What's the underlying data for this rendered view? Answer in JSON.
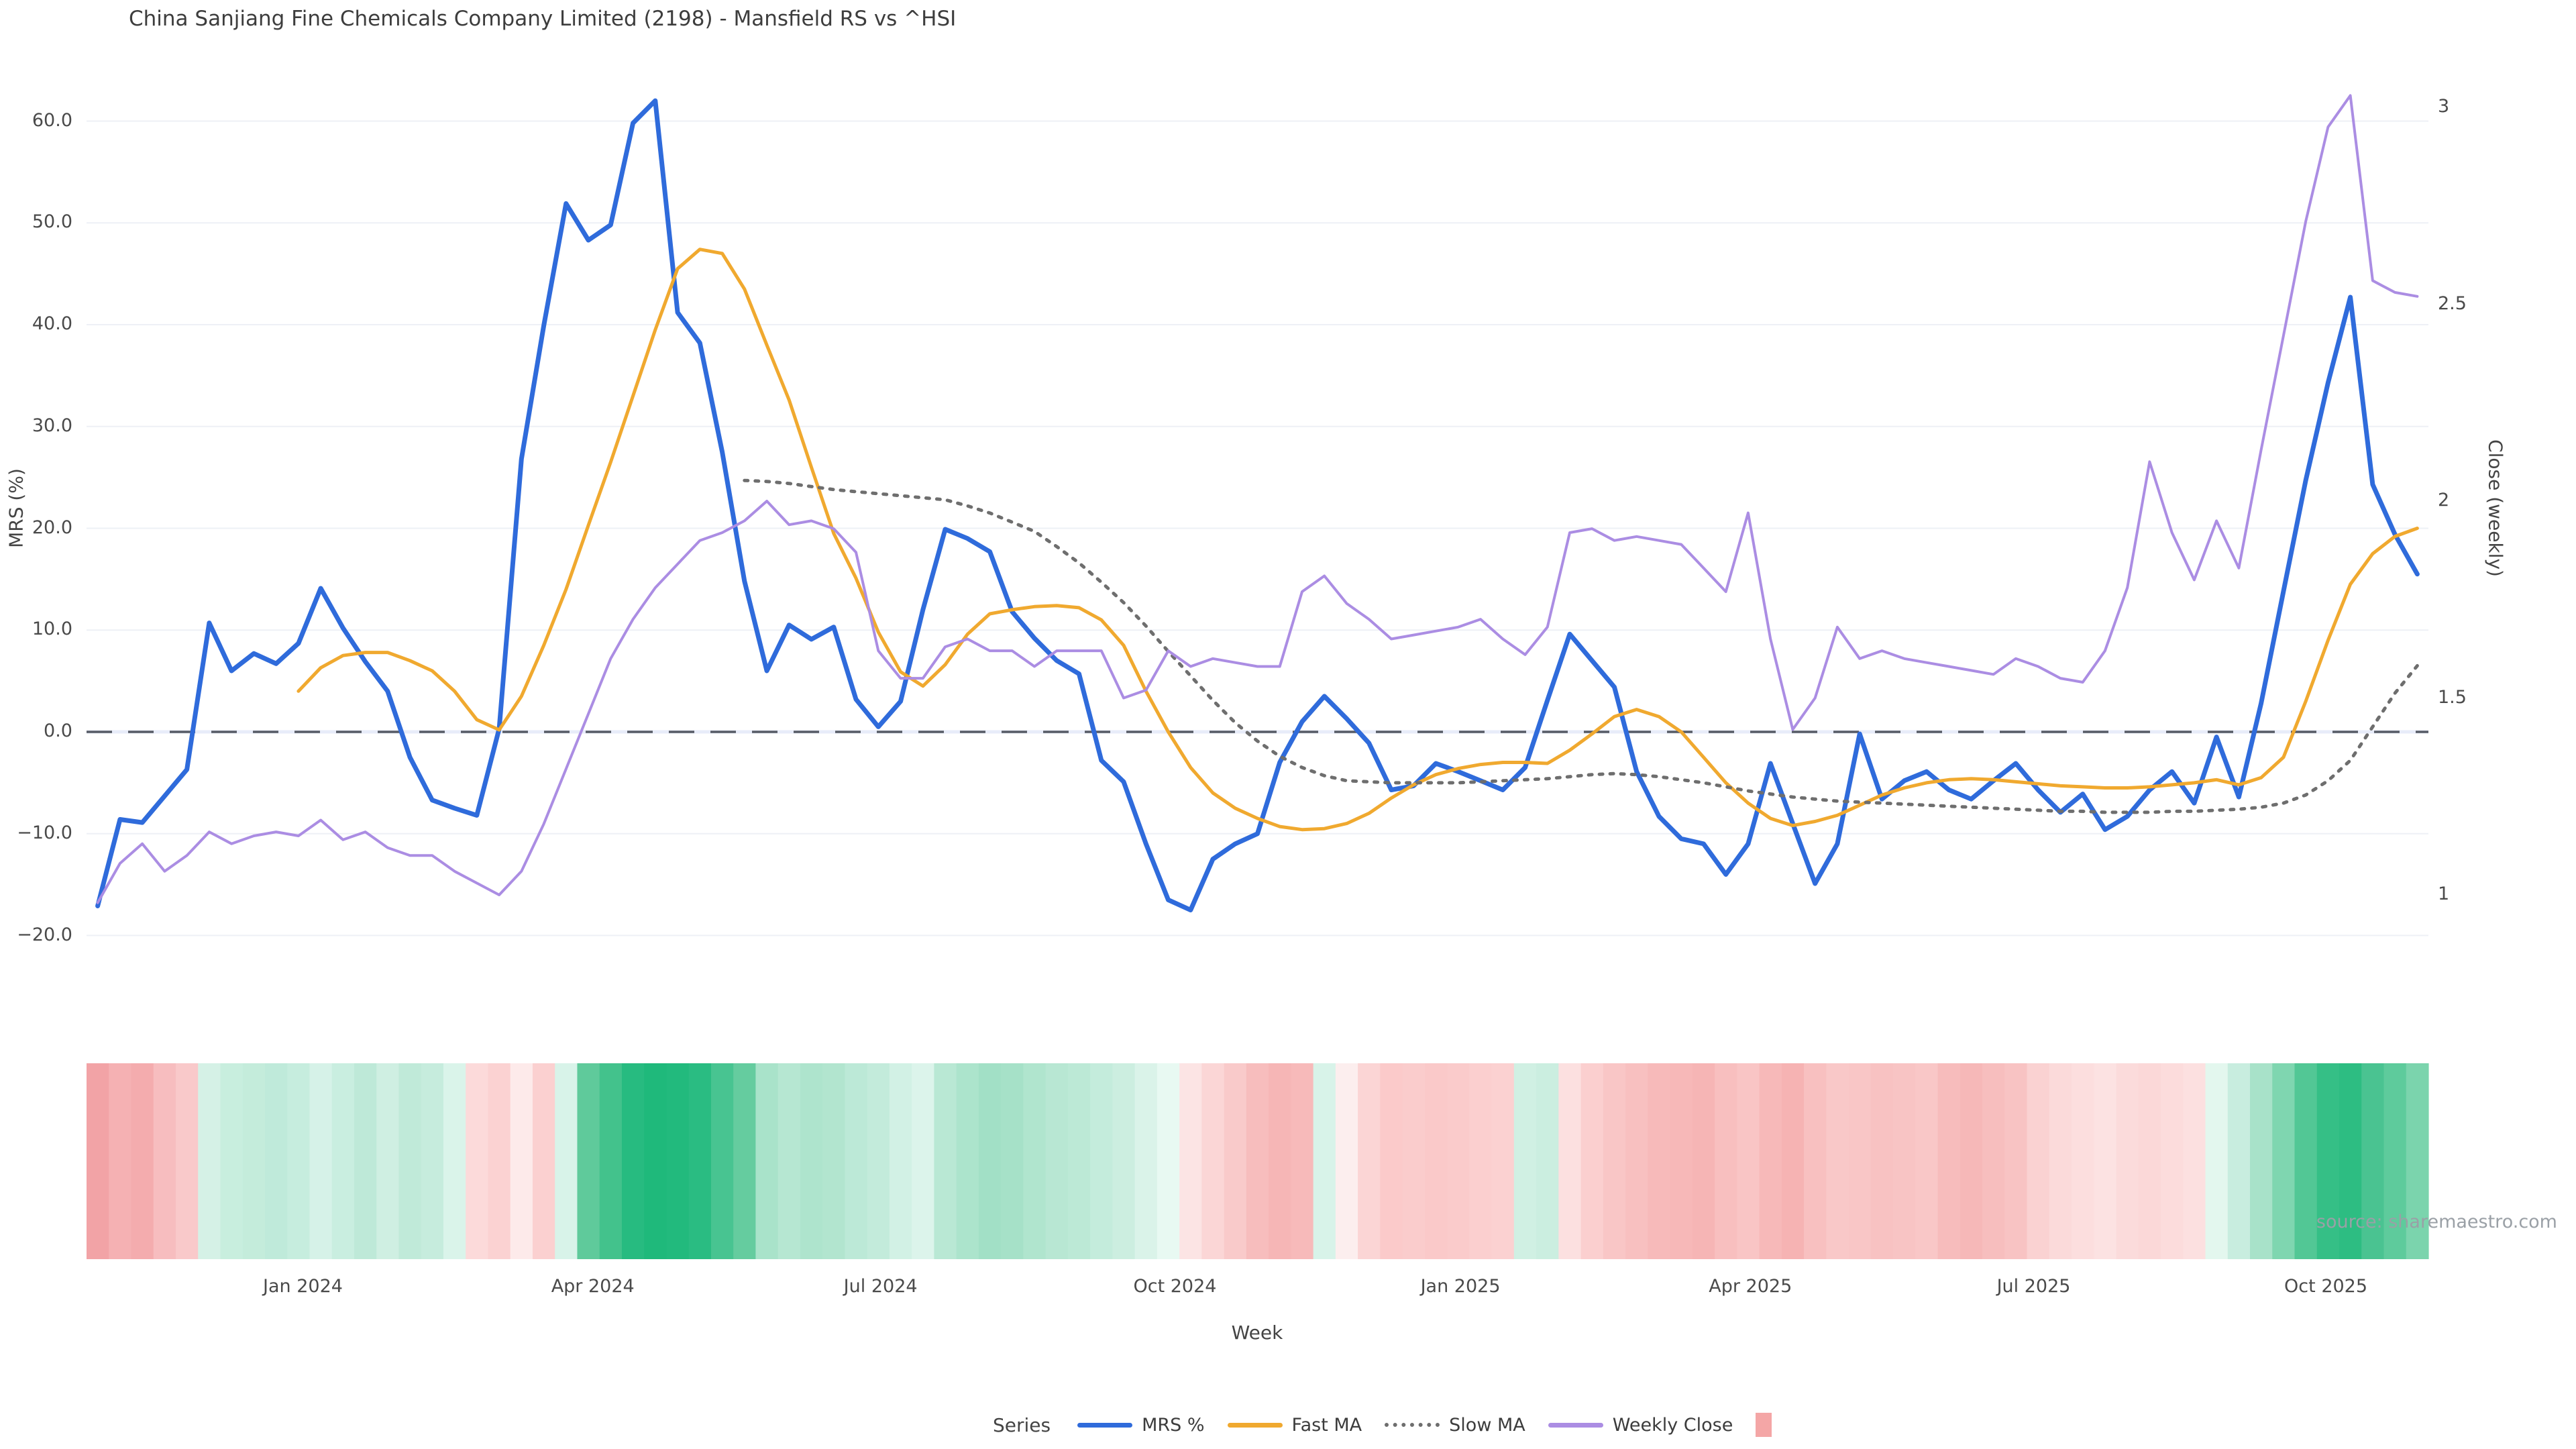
{
  "title": "China Sanjiang Fine Chemicals Company Limited (2198) - Mansfield RS vs ^HSI",
  "source": "source: sharemaestro.com",
  "axes": {
    "left": {
      "label": "MRS (%)",
      "ticks": [
        [
          "60.0",
          60
        ],
        [
          "50.0",
          50
        ],
        [
          "40.0",
          40
        ],
        [
          "30.0",
          30
        ],
        [
          "20.0",
          20
        ],
        [
          "10.0",
          10
        ],
        [
          "0.0",
          0
        ],
        [
          "−10.0",
          -10
        ],
        [
          "−20.0",
          -20
        ]
      ]
    },
    "right": {
      "label": "Close (weekly)",
      "ticks": [
        [
          "3",
          3
        ],
        [
          "2.5",
          2.5
        ],
        [
          "2",
          2
        ],
        [
          "1.5",
          1.5
        ],
        [
          "1",
          1
        ]
      ]
    },
    "x": {
      "label": "Week",
      "ticks": [
        [
          "Jan 2024",
          9.2
        ],
        [
          "Apr 2024",
          22.2
        ],
        [
          "Jul 2024",
          35.1
        ],
        [
          "Oct 2024",
          48.3
        ],
        [
          "Jan 2025",
          61.1
        ],
        [
          "Apr 2025",
          74.1
        ],
        [
          "Jul 2025",
          86.8
        ],
        [
          "Oct 2025",
          99.9
        ]
      ]
    }
  },
  "legend": {
    "series_title": "Series",
    "items": [
      {
        "label": "MRS %",
        "swatch": "line",
        "color": "#2f6bdb"
      },
      {
        "label": "Fast MA",
        "swatch": "line",
        "color": "#f0a92f"
      },
      {
        "label": "Slow MA",
        "swatch": "dotted",
        "color": "#6e6e6e"
      },
      {
        "label": "Weekly Close",
        "swatch": "line",
        "color": "#ab8de3"
      },
      {
        "label": "",
        "swatch": "square",
        "color": "#f4a6a6"
      }
    ]
  },
  "colors": {
    "mrs": "#2f6bdb",
    "fast_ma": "#f0a92f",
    "slow_ma": "#6e6e6e",
    "close": "#ab8de3",
    "zero_dash": "#565b66",
    "zero_band": "#e8ecf9",
    "grid": "#eef0f6",
    "title_text": "#3d3d3d",
    "tick_text": "#4a4a4a",
    "source_text": "#9aa0a6"
  },
  "chart_data": {
    "type": "line",
    "x_unit": "weekly index (late Oct 2023 – Nov 2025)",
    "n_points": 105,
    "left_axis": {
      "label": "MRS (%)",
      "range": [
        -24,
        65
      ],
      "zeroline": true
    },
    "right_axis": {
      "label": "Close (weekly)",
      "range": [
        0.85,
        3.05
      ]
    },
    "grid": "horizontal only",
    "legend_position": "bottom center",
    "series": [
      {
        "name": "MRS %",
        "axis": "left",
        "style": "solid",
        "color": "#2f6bdb",
        "values": [
          -17.1,
          -8.6,
          -8.9,
          -6.3,
          -3.7,
          10.7,
          6.0,
          7.7,
          6.7,
          8.7,
          14.1,
          10.2,
          6.9,
          4.0,
          -2.5,
          -6.7,
          -7.5,
          -8.2,
          0.3,
          26.8,
          39.9,
          51.9,
          48.3,
          49.8,
          59.8,
          62.0,
          41.2,
          38.2,
          27.5,
          14.8,
          6.0,
          10.5,
          9.1,
          10.3,
          3.2,
          0.5,
          3.0,
          12.0,
          19.9,
          19.0,
          17.7,
          11.8,
          9.2,
          7.0,
          5.7,
          -2.8,
          -4.9,
          -11.0,
          -16.5,
          -17.5,
          -12.5,
          -11.0,
          -10.0,
          -3.0,
          1.0,
          3.5,
          1.3,
          -1.1,
          -5.7,
          -5.3,
          -3.1,
          -3.9,
          -4.8,
          -5.7,
          -3.5,
          3.1,
          9.6,
          7.0,
          4.4,
          -3.9,
          -8.3,
          -10.5,
          -11.0,
          -14.0,
          -11.0,
          -3.1,
          -9.0,
          -14.9,
          -11.0,
          -0.2,
          -6.6,
          -4.8,
          -3.9,
          -5.7,
          -6.6,
          -4.8,
          -3.1,
          -5.7,
          -7.9,
          -6.1,
          -9.6,
          -8.3,
          -5.7,
          -3.9,
          -7.0,
          -0.5,
          -6.4,
          2.8,
          13.8,
          24.7,
          34.3,
          42.7,
          24.3,
          19.4,
          15.5
        ]
      },
      {
        "name": "Fast MA",
        "axis": "left",
        "style": "solid",
        "color": "#f0a92f",
        "values": [
          null,
          null,
          null,
          null,
          null,
          null,
          null,
          null,
          null,
          4.0,
          6.3,
          7.5,
          7.8,
          7.8,
          7.0,
          6.0,
          4.0,
          1.2,
          0.2,
          3.5,
          8.5,
          14.0,
          20.3,
          26.5,
          33.0,
          39.5,
          45.5,
          47.4,
          47.0,
          43.5,
          38.0,
          32.6,
          26.0,
          19.5,
          15.1,
          9.8,
          5.9,
          4.5,
          6.6,
          9.6,
          11.6,
          12.0,
          12.3,
          12.4,
          12.2,
          11.0,
          8.5,
          4.0,
          0.0,
          -3.5,
          -6.0,
          -7.5,
          -8.5,
          -9.3,
          -9.6,
          -9.5,
          -9.0,
          -8.0,
          -6.5,
          -5.2,
          -4.2,
          -3.6,
          -3.2,
          -3.0,
          -3.0,
          -3.1,
          -1.8,
          -0.2,
          1.5,
          2.2,
          1.5,
          0.0,
          -2.5,
          -5.0,
          -7.0,
          -8.5,
          -9.2,
          -8.8,
          -8.2,
          -7.2,
          -6.2,
          -5.5,
          -5.0,
          -4.7,
          -4.6,
          -4.7,
          -4.9,
          -5.1,
          -5.3,
          -5.4,
          -5.5,
          -5.5,
          -5.4,
          -5.2,
          -5.0,
          -4.7,
          -5.2,
          -4.5,
          -2.5,
          3.0,
          9.0,
          14.5,
          17.5,
          19.2,
          20.0
        ]
      },
      {
        "name": "Slow MA",
        "axis": "left",
        "style": "dotted",
        "color": "#6e6e6e",
        "values": [
          null,
          null,
          null,
          null,
          null,
          null,
          null,
          null,
          null,
          null,
          null,
          null,
          null,
          null,
          null,
          null,
          null,
          null,
          null,
          null,
          null,
          null,
          null,
          null,
          null,
          null,
          null,
          null,
          null,
          24.7,
          24.6,
          24.4,
          24.1,
          23.8,
          23.6,
          23.4,
          23.2,
          23.0,
          22.8,
          22.2,
          21.5,
          20.6,
          19.7,
          18.2,
          16.6,
          14.7,
          12.7,
          10.4,
          7.9,
          5.5,
          3.1,
          0.9,
          -0.9,
          -2.4,
          -3.5,
          -4.3,
          -4.8,
          -4.9,
          -5.0,
          -5.0,
          -5.0,
          -5.0,
          -4.9,
          -4.8,
          -4.7,
          -4.6,
          -4.4,
          -4.2,
          -4.1,
          -4.2,
          -4.4,
          -4.7,
          -5.0,
          -5.4,
          -5.8,
          -6.1,
          -6.4,
          -6.6,
          -6.8,
          -6.9,
          -7.0,
          -7.1,
          -7.2,
          -7.3,
          -7.4,
          -7.5,
          -7.6,
          -7.7,
          -7.8,
          -7.8,
          -7.9,
          -7.9,
          -7.9,
          -7.8,
          -7.8,
          -7.7,
          -7.6,
          -7.4,
          -7.0,
          -6.2,
          -4.8,
          -2.8,
          0.5,
          3.8,
          6.5
        ]
      },
      {
        "name": "Weekly Close",
        "axis": "right",
        "style": "solid",
        "color": "#ab8de3",
        "values": [
          0.98,
          1.08,
          1.13,
          1.06,
          1.1,
          1.16,
          1.13,
          1.15,
          1.16,
          1.15,
          1.19,
          1.14,
          1.16,
          1.12,
          1.1,
          1.1,
          1.06,
          1.03,
          1.0,
          1.06,
          1.18,
          1.32,
          1.46,
          1.6,
          1.7,
          1.78,
          1.84,
          1.9,
          1.92,
          1.95,
          2.0,
          1.94,
          1.95,
          1.93,
          1.87,
          1.62,
          1.55,
          1.55,
          1.63,
          1.65,
          1.62,
          1.62,
          1.58,
          1.62,
          1.62,
          1.62,
          1.5,
          1.52,
          1.62,
          1.58,
          1.6,
          1.59,
          1.58,
          1.58,
          1.77,
          1.81,
          1.74,
          1.7,
          1.65,
          1.66,
          1.67,
          1.68,
          1.7,
          1.65,
          1.61,
          1.68,
          1.92,
          1.93,
          1.9,
          1.91,
          1.9,
          1.89,
          1.83,
          1.77,
          1.97,
          1.65,
          1.42,
          1.5,
          1.68,
          1.6,
          1.62,
          1.6,
          1.59,
          1.58,
          1.57,
          1.56,
          1.6,
          1.58,
          1.55,
          1.54,
          1.62,
          1.78,
          2.1,
          1.92,
          1.8,
          1.95,
          1.83,
          2.13,
          2.42,
          2.71,
          2.95,
          3.03,
          2.56,
          2.53,
          2.52
        ]
      }
    ],
    "heatmap_strip": {
      "name": "weekly sentiment strip (red = weak, green = strong)",
      "colors": [
        "#f2a3a6",
        "#f5b1b3",
        "#f4acae",
        "#f7bdbf",
        "#f9c9ca",
        "#d5f1e6",
        "#c8eede",
        "#c4ecdb",
        "#bfeada",
        "#c6edde",
        "#d6f2e8",
        "#c9eee0",
        "#bee9d8",
        "#cfefe2",
        "#c0ead9",
        "#c6ecdd",
        "#daf4ea",
        "#fcdada",
        "#fbd2d2",
        "#fdeaea",
        "#fbd0d0",
        "#d8f3e9",
        "#5fca9b",
        "#43c28c",
        "#27bb80",
        "#1fb97b",
        "#22ba7d",
        "#2abc82",
        "#48c491",
        "#65cc9f",
        "#a9e3ca",
        "#b6e7d2",
        "#aee4cd",
        "#b2e5cf",
        "#bce9d7",
        "#c3ebdb",
        "#d2f1e5",
        "#dcf4eb",
        "#b9e8d4",
        "#ace4cc",
        "#a2e0c6",
        "#a6e1c8",
        "#b0e5ce",
        "#b8e7d3",
        "#bce9d6",
        "#c4ecdc",
        "#cceee0",
        "#daf3e9",
        "#e8f9f2",
        "#fce4e4",
        "#fbd6d6",
        "#f9caca",
        "#f7bdbd",
        "#f6b6b6",
        "#f7baba",
        "#d8f3e9",
        "#fceeee",
        "#fbd5d5",
        "#fbcaca",
        "#facccc",
        "#fac9c9",
        "#facbcb",
        "#fbcfcf",
        "#fbd1d1",
        "#d0f0e3",
        "#cbeee0",
        "#fce0e0",
        "#fbcfcf",
        "#f9c6c6",
        "#f8c0c0",
        "#f7baba",
        "#f7b8b8",
        "#f6b5b5",
        "#f8bfbf",
        "#f9c5c5",
        "#f7b9b9",
        "#f6b3b3",
        "#f8c0c0",
        "#f9c8c8",
        "#f9c6c6",
        "#f8c2c2",
        "#f8c4c4",
        "#f9c7c7",
        "#f7bcbc",
        "#f6b8b8",
        "#f7bebe",
        "#f8c3c3",
        "#fad2d2",
        "#fbdada",
        "#fcdede",
        "#fce2e2",
        "#fbdbdb",
        "#fbd8d8",
        "#fcdcdc",
        "#fce0e0",
        "#e3f7ee",
        "#c8eddf",
        "#a8e2c9",
        "#7fd6b0",
        "#52c795",
        "#35bf86",
        "#2dbd82",
        "#4ac391",
        "#5ecb9c",
        "#7bd4ad"
      ]
    }
  }
}
